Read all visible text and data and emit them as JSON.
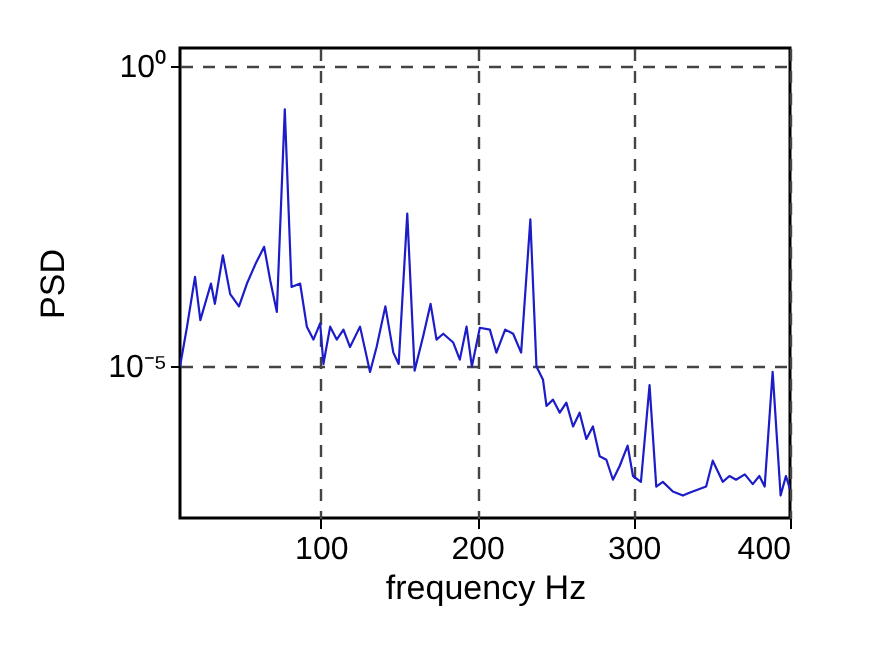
{
  "chart_data": {
    "type": "line",
    "xlabel": "frequency Hz",
    "ylabel": "PSD",
    "log": "y",
    "grid": true,
    "marker": "none",
    "line_style": "solid",
    "xlim": [
      10,
      400
    ],
    "xticks": [
      100,
      200,
      300,
      400
    ],
    "ylim": [
      3e-08,
      2
    ],
    "yticks": [
      {
        "value": 1,
        "label": "10⁰"
      },
      {
        "value": 1e-05,
        "label": "10⁻⁵"
      }
    ],
    "series": [
      {
        "color": "#1c1cc8",
        "x": [
          10,
          14.5,
          19.6,
          23,
          29.8,
          32.3,
          37.4,
          42.1,
          47.7,
          52.8,
          58.3,
          63.8,
          67.7,
          71.9,
          77,
          81.3,
          86.8,
          91.1,
          95.3,
          99.6,
          101.7,
          106,
          110.2,
          114.5,
          118.7,
          125.1,
          131.5,
          135.7,
          141.3,
          146.4,
          149.8,
          155.3,
          160,
          165.5,
          170.2,
          174,
          178.3,
          184.7,
          188.9,
          193.2,
          196.6,
          201.7,
          208.1,
          212.3,
          217.9,
          223,
          228.1,
          234,
          237.9,
          242.1,
          244.3,
          248.5,
          252.8,
          257,
          261.3,
          265.5,
          269.8,
          274,
          278.3,
          282.6,
          286.8,
          291.1,
          296.2,
          299.6,
          304.7,
          310.2,
          314.5,
          318.7,
          325.1,
          331.5,
          335.7,
          342.1,
          346.4,
          350.6,
          357,
          361.3,
          365.5,
          371.1,
          376.2,
          380.4,
          383.8,
          388.9,
          394,
          397.4,
          400
        ],
        "values": [
          1e-05,
          4.6e-05,
          0.00031,
          5.9e-05,
          0.00024,
          0.00011,
          0.00071,
          0.00016,
          0.0001,
          0.00024,
          0.00051,
          0.00098,
          0.00027,
          8.1e-05,
          0.19,
          0.00021,
          0.00024,
          4.6e-05,
          2.8e-05,
          5.2e-05,
          1.1e-05,
          4.6e-05,
          2.8e-05,
          4.1e-05,
          2.1e-05,
          4.6e-05,
          8.1e-06,
          2.1e-05,
          0.0001,
          1.7e-05,
          1.1e-05,
          0.0035,
          8.5e-06,
          3.2e-05,
          0.00011,
          2.8e-05,
          3.5e-05,
          2.5e-05,
          1.3e-05,
          4.6e-05,
          1e-05,
          4.4e-05,
          4.1e-05,
          1.7e-05,
          4.1e-05,
          3.5e-05,
          1.7e-05,
          0.0028,
          1e-05,
          6e-06,
          2.2e-06,
          2.8e-06,
          1.7e-06,
          2.5e-06,
          1e-06,
          1.7e-06,
          6.2e-07,
          1e-06,
          3.2e-07,
          2.8e-07,
          1.3e-07,
          2.2e-07,
          4.8e-07,
          1.5e-07,
          1.2e-07,
          4.9e-06,
          1e-07,
          1.2e-07,
          8.3e-08,
          7.1e-08,
          7.9e-08,
          9.1e-08,
          1e-07,
          2.7e-07,
          1.2e-07,
          1.5e-07,
          1.3e-07,
          1.6e-07,
          1.1e-07,
          1.5e-07,
          1e-07,
          8.1e-06,
          7.1e-08,
          1.5e-07,
          9.1e-08
        ]
      }
    ]
  }
}
